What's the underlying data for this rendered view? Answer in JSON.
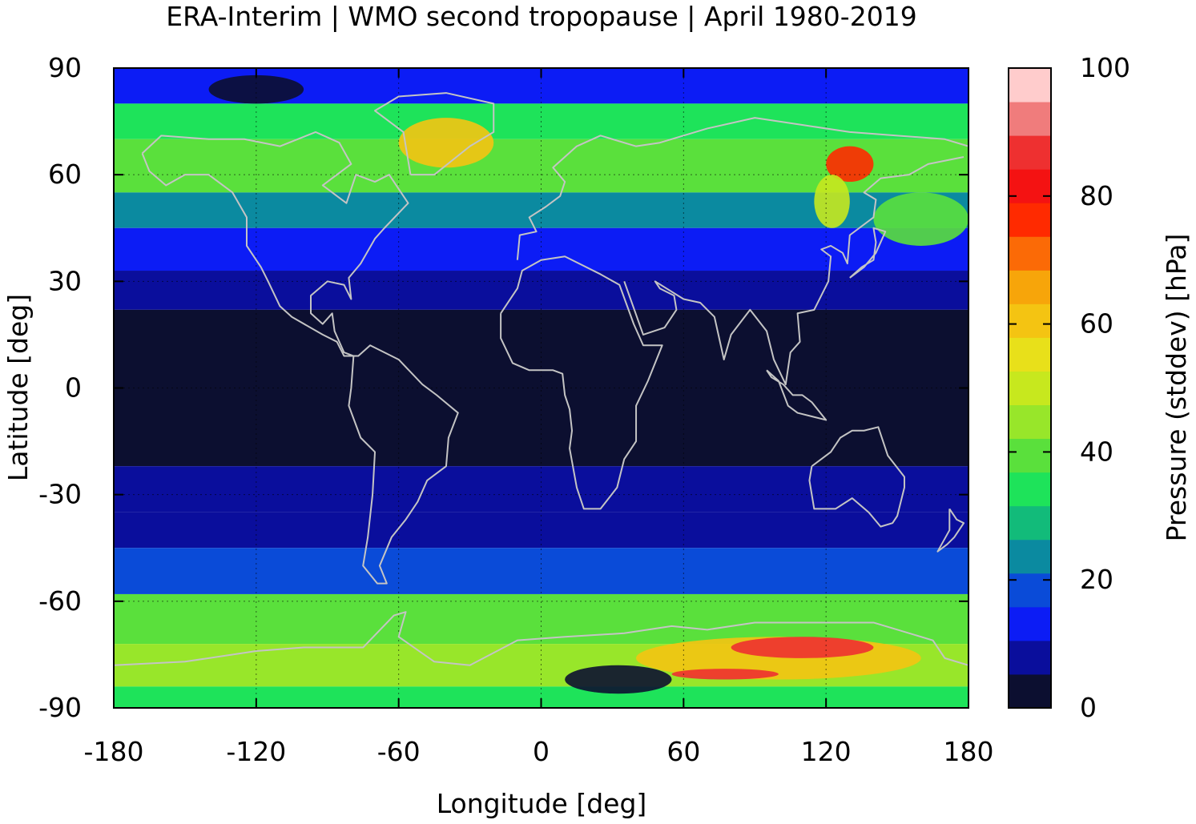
{
  "chart_data": {
    "type": "heatmap",
    "title": "ERA-Interim | WMO second tropopause | April 1980-2019",
    "xlabel": "Longitude [deg]",
    "ylabel": "Latitude [deg]",
    "xlim": [
      -180,
      180
    ],
    "ylim": [
      -90,
      90
    ],
    "xticks": [
      -180,
      -120,
      -60,
      0,
      60,
      120,
      180
    ],
    "yticks": [
      90,
      60,
      30,
      0,
      -30,
      -60,
      -90
    ],
    "grid": true,
    "colorbar": {
      "label": "Pressure (stddev) [hPa]",
      "range": [
        0,
        100
      ],
      "ticks": [
        0,
        20,
        40,
        60,
        80,
        100
      ],
      "colors": [
        "#0c0f30",
        "#0a0e9c",
        "#0c1cf5",
        "#0a4bd8",
        "#0b8aa0",
        "#12bb7a",
        "#1ee35a",
        "#5ae03c",
        "#98e62a",
        "#c7e81e",
        "#e8e01a",
        "#f4c412",
        "#f7a50a",
        "#fb6a06",
        "#ff2a00",
        "#f41212",
        "#ee3030",
        "#f07c7c",
        "#ffcccc"
      ]
    },
    "bands": [
      {
        "lat": [
          80,
          90
        ],
        "value": 12
      },
      {
        "lat": [
          70,
          80
        ],
        "value": 34
      },
      {
        "lat": [
          55,
          70
        ],
        "value": 38
      },
      {
        "lat": [
          45,
          55
        ],
        "value": 24
      },
      {
        "lat": [
          33,
          45
        ],
        "value": 13
      },
      {
        "lat": [
          22,
          33
        ],
        "value": 10
      },
      {
        "lat": [
          -22,
          22
        ],
        "value": 2
      },
      {
        "lat": [
          -35,
          -22
        ],
        "value": 7
      },
      {
        "lat": [
          -45,
          -35
        ],
        "value": 10
      },
      {
        "lat": [
          -58,
          -45
        ],
        "value": 20
      },
      {
        "lat": [
          -72,
          -58
        ],
        "value": 38
      },
      {
        "lat": [
          -84,
          -72
        ],
        "value": 45
      },
      {
        "lat": [
          -90,
          -84
        ],
        "value": 35
      }
    ],
    "hotspots": [
      {
        "lon": [
          -60,
          -20
        ],
        "lat": [
          62,
          76
        ],
        "value": 62
      },
      {
        "lon": [
          120,
          140
        ],
        "lat": [
          58,
          68
        ],
        "value": 78
      },
      {
        "lon": [
          115,
          130
        ],
        "lat": [
          45,
          60
        ],
        "value": 50
      },
      {
        "lon": [
          40,
          160
        ],
        "lat": [
          -82,
          -70
        ],
        "value": 62
      },
      {
        "lon": [
          80,
          140
        ],
        "lat": [
          -76,
          -70
        ],
        "value": 88
      },
      {
        "lon": [
          55,
          100
        ],
        "lat": [
          -82,
          -79
        ],
        "value": 85
      },
      {
        "lon": [
          10,
          55
        ],
        "lat": [
          -86,
          -78
        ],
        "value": 3
      },
      {
        "lon": [
          -140,
          -100
        ],
        "lat": [
          80,
          88
        ],
        "value": 3
      },
      {
        "lon": [
          140,
          180
        ],
        "lat": [
          40,
          55
        ],
        "value": 40
      }
    ]
  }
}
